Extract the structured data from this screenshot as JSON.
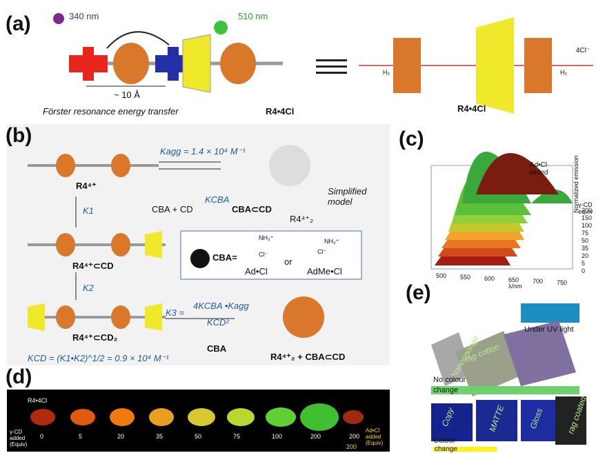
{
  "panel_a": {
    "label": "(a)",
    "excitation": "340 nm",
    "emission": "510 nm",
    "distance": "~ 10 Å",
    "caption": "Förster resonance energy transfer",
    "compound_left": "R4•4Cl",
    "compound_right": "R4•4Cl",
    "counterion": "4Cl⁻",
    "amine_left": "H₂",
    "amine_right": "H₂"
  },
  "panel_b": {
    "label": "(b)",
    "k_agg": "Kagg = 1.4 × 10⁴ M⁻¹",
    "r4": "R4⁴⁺",
    "k1": "K1",
    "equilibrium": "CBA + CD",
    "k_cba": "KCBA",
    "complex": "CBA⊂CD",
    "dimer": "R4⁴⁺₂",
    "model": "Simplified model",
    "r4_cd": "R4⁴⁺⊂CD",
    "cba_def": "CBA=",
    "nh3": "NH₃⁺",
    "cl1": "Cl⁻",
    "or": "or",
    "cl2": "Cl⁻",
    "nh3b": "NH₃⁺",
    "ad": "Ad•Cl",
    "adme": "AdMe•Cl",
    "k2": "K2",
    "r4_cd2": "R4⁴⁺⊂CD₂",
    "k3": "K3 =",
    "k3_num": "4KCBA •Kagg",
    "k3_den": "KCD²",
    "cba": "CBA",
    "products": "R4⁴⁺₂ + CBA⊂CD",
    "k_cd": "KCD = (K1•K2)^1/2 = 0.9 × 10⁴ M⁻¹"
  },
  "panel_c": {
    "label": "(c)",
    "annotation": "Ad•Cl added",
    "y_label": "Normalized emission",
    "legend_title": "γ-CD equiv",
    "legend": [
      "200",
      "150",
      "100",
      "75",
      "50",
      "35",
      "20",
      "5",
      "0"
    ],
    "x_label": "λ/nm",
    "x_ticks": [
      "500",
      "550",
      "600",
      "650",
      "700",
      "750"
    ]
  },
  "panel_d": {
    "label": "(d)",
    "sample": "R4•4Cl",
    "row_label": "γ-CD added (Equiv)",
    "equivalents": [
      "0",
      "5",
      "20",
      "35",
      "50",
      "75",
      "100",
      "200",
      "200"
    ],
    "ad_label": "Ad•Cl added (Equiv)",
    "ad_value": "200"
  },
  "panel_e": {
    "label": "(e)",
    "uv": "Under UV light",
    "no_change_1": "No colour",
    "no_change_2": "change",
    "change_1": "Colour",
    "change_2": "change",
    "writings": [
      "Nanosponge",
      "rag cotton",
      "Copy",
      "MATTE",
      "Gloss",
      "rag coated"
    ]
  }
}
